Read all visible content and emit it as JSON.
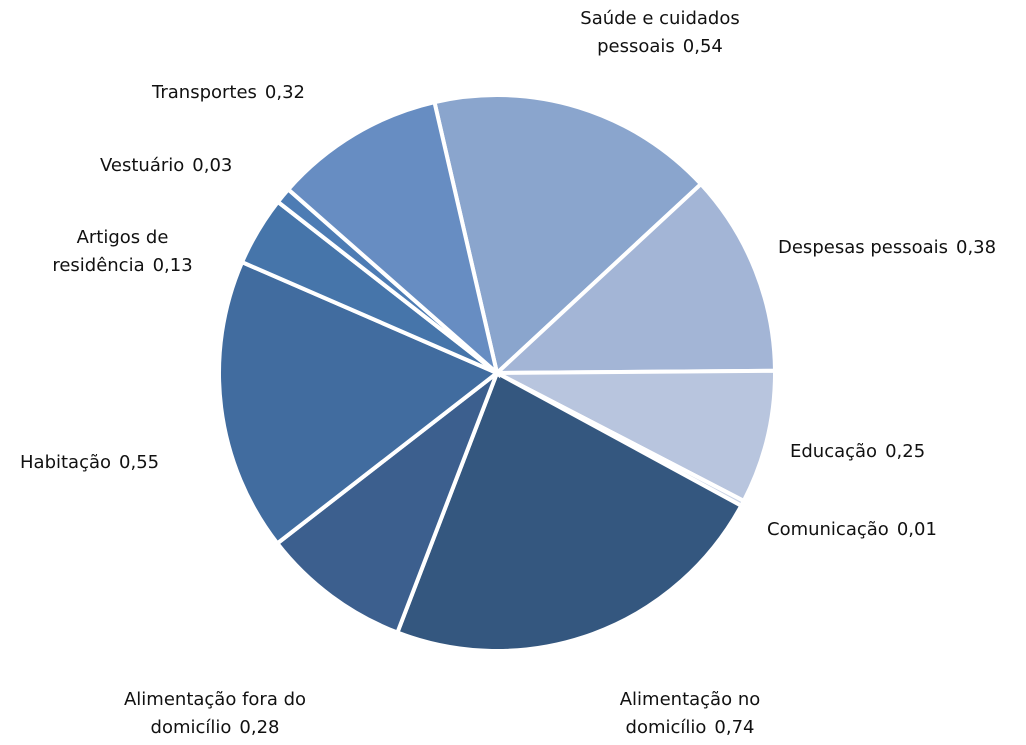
{
  "chart_data": {
    "type": "pie",
    "categories": [
      "Saúde e cuidados pessoais",
      "Despesas pessoais",
      "Educação",
      "Comunicação",
      "Alimentação no domicílio",
      "Alimentação fora do domicílio",
      "Habitação",
      "Artigos de residência",
      "Vestuário",
      "Transportes"
    ],
    "values": [
      0.54,
      0.38,
      0.25,
      0.01,
      0.74,
      0.28,
      0.55,
      0.13,
      0.03,
      0.32
    ],
    "value_labels": [
      "0,54",
      "0,38",
      "0,25",
      "0,01",
      "0,74",
      "0,28",
      "0,55",
      "0,13",
      "0,03",
      "0,32"
    ],
    "colors": [
      "#8aa5cd",
      "#a3b5d6",
      "#b8c5de",
      "#c9d3e6",
      "#34577f",
      "#3c5f8e",
      "#416c9f",
      "#4675aa",
      "#4d7cb4",
      "#678dc2"
    ]
  }
}
